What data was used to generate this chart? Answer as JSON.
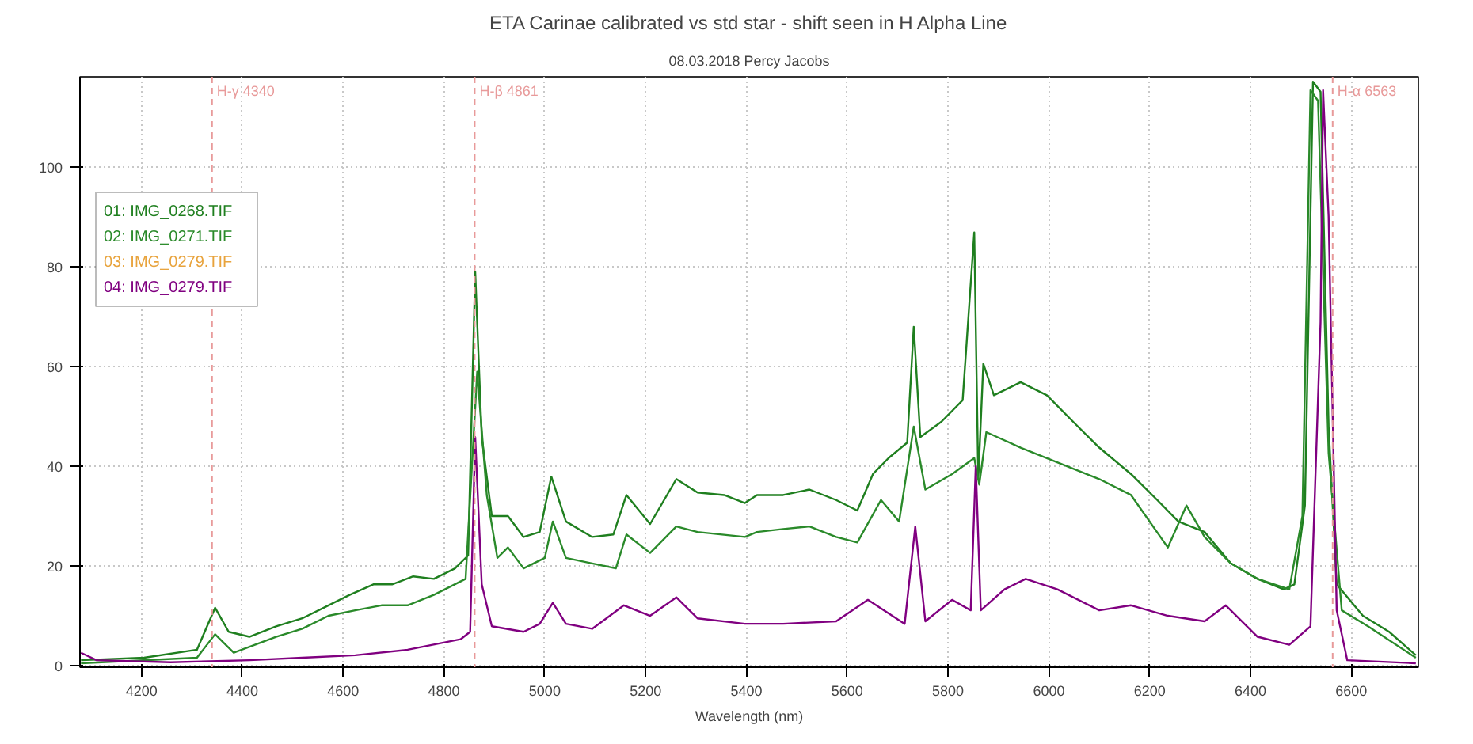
{
  "chart_data": {
    "type": "line",
    "title": "ETA Carinae calibrated vs std star - shift seen in H Alpha Line",
    "subtitle": "08.03.2018 Percy Jacobs",
    "xlabel": "Wavelength (nm)",
    "xlim": [
      4078,
      6733
    ],
    "ylim": [
      -0.3,
      118
    ],
    "xticks": [
      4200,
      4400,
      4600,
      4800,
      5000,
      5200,
      5400,
      5600,
      5800,
      6000,
      6200,
      6400,
      6600
    ],
    "yticks": [
      0,
      20,
      40,
      60,
      80,
      100
    ],
    "grid": true,
    "legend": "top left",
    "line_style": "solid",
    "marker": "none",
    "ref_lines": [
      {
        "axis": "x",
        "value": 4340,
        "label": "H-γ 4340",
        "color": "#e89a9a",
        "line_style": "dashed"
      },
      {
        "axis": "x",
        "value": 4861,
        "label": "H-β 4861",
        "color": "#e89a9a",
        "line_style": "dashed"
      },
      {
        "axis": "x",
        "value": 6563,
        "label": "H-α 6563",
        "color": "#e89a9a",
        "line_style": "dashed"
      }
    ],
    "series": [
      {
        "name": "01: IMG_0268.TIF",
        "color": "#1f7f1f",
        "x": [
          4080,
          4205,
          4310,
          4346,
          4373,
          4414,
          4467,
          4519,
          4571,
          4613,
          4660,
          4697,
          4739,
          4780,
          4822,
          4848,
          4862,
          4875,
          4895,
          4927,
          4958,
          4990,
          5013,
          5042,
          5094,
          5136,
          5162,
          5209,
          5261,
          5303,
          5356,
          5397,
          5421,
          5473,
          5525,
          5578,
          5620,
          5651,
          5682,
          5719,
          5732,
          5745,
          5787,
          5829,
          5852,
          5860,
          5870,
          5891,
          5944,
          5996,
          6048,
          6100,
          6163,
          6215,
          6257,
          6309,
          6361,
          6414,
          6466,
          6487,
          6508,
          6524,
          6539,
          6555,
          6571,
          6623,
          6675,
          6728
        ],
        "values": [
          1.1,
          1.6,
          3.2,
          11.6,
          6.8,
          5.8,
          7.9,
          9.5,
          12.1,
          14.2,
          16.3,
          16.3,
          17.9,
          17.4,
          19.5,
          22.1,
          78.9,
          45.8,
          30,
          30,
          25.8,
          26.8,
          37.9,
          28.9,
          25.8,
          26.3,
          34.2,
          28.4,
          37.4,
          34.7,
          34.2,
          32.6,
          34.2,
          34.2,
          35.3,
          33.2,
          31.1,
          38.4,
          41.6,
          44.7,
          67.9,
          45.8,
          48.9,
          53.2,
          86.8,
          37.4,
          60.5,
          54.2,
          56.8,
          54.2,
          48.9,
          43.7,
          38.4,
          33.2,
          28.9,
          26.8,
          20.5,
          17.4,
          15.3,
          16.3,
          32.1,
          117,
          115,
          47.9,
          16.3,
          10,
          6.8,
          2.1
        ]
      },
      {
        "name": "02: IMG_0271.TIF",
        "color": "#2a8a2a",
        "x": [
          4080,
          4310,
          4346,
          4383,
          4467,
          4519,
          4571,
          4624,
          4676,
          4728,
          4780,
          4843,
          4866,
          4885,
          4906,
          4927,
          4958,
          5000,
          5016,
          5042,
          5094,
          5141,
          5162,
          5209,
          5261,
          5303,
          5397,
          5421,
          5473,
          5525,
          5578,
          5620,
          5667,
          5703,
          5732,
          5755,
          5808,
          5852,
          5862,
          5876,
          5944,
          5996,
          6048,
          6100,
          6163,
          6236,
          6273,
          6309,
          6361,
          6414,
          6477,
          6503,
          6519,
          6534,
          6555,
          6581,
          6633,
          6728
        ],
        "values": [
          0.5,
          1.6,
          6.3,
          2.6,
          5.8,
          7.4,
          10,
          11.1,
          12.1,
          12.1,
          14.2,
          17.4,
          58.9,
          34.2,
          21.6,
          23.7,
          19.5,
          21.6,
          28.9,
          21.6,
          20.5,
          19.5,
          26.3,
          22.6,
          27.9,
          26.8,
          25.8,
          26.8,
          27.4,
          27.9,
          25.8,
          24.7,
          33.2,
          28.9,
          47.9,
          35.3,
          38.4,
          41.6,
          36.3,
          46.8,
          43.7,
          41.6,
          39.5,
          37.4,
          34.2,
          23.7,
          32.1,
          25.8,
          20.5,
          17.4,
          15.3,
          30,
          115.3,
          113.2,
          42.6,
          11.1,
          7.9,
          1.6
        ]
      },
      {
        "name": "03: IMG_0279.TIF",
        "color": "#e8a33c"
      },
      {
        "name": "04: IMG_0279.TIF",
        "color": "#800080",
        "x": [
          4080,
          4111,
          4258,
          4414,
          4519,
          4624,
          4728,
          4833,
          4852,
          4862,
          4875,
          4895,
          4958,
          4990,
          5016,
          5042,
          5094,
          5157,
          5209,
          5261,
          5303,
          5397,
          5473,
          5578,
          5641,
          5714,
          5735,
          5755,
          5808,
          5845,
          5855,
          5865,
          5912,
          5954,
          6017,
          6100,
          6163,
          6236,
          6309,
          6351,
          6414,
          6477,
          6519,
          6539,
          6544,
          6555,
          6571,
          6592,
          6728
        ],
        "values": [
          2.6,
          1.1,
          0.7,
          1.1,
          1.6,
          2.1,
          3.2,
          5.3,
          6.8,
          45.8,
          16.3,
          7.9,
          6.8,
          8.4,
          12.6,
          8.4,
          7.4,
          12.1,
          10,
          13.7,
          9.5,
          8.4,
          8.4,
          8.9,
          13.2,
          8.4,
          27.9,
          8.9,
          13.2,
          11.1,
          40,
          11.1,
          15.3,
          17.4,
          15.3,
          11.1,
          12.1,
          10,
          8.9,
          12.1,
          5.8,
          4.2,
          7.9,
          68.9,
          115.3,
          90,
          11.1,
          1.1,
          0.5
        ]
      }
    ]
  }
}
